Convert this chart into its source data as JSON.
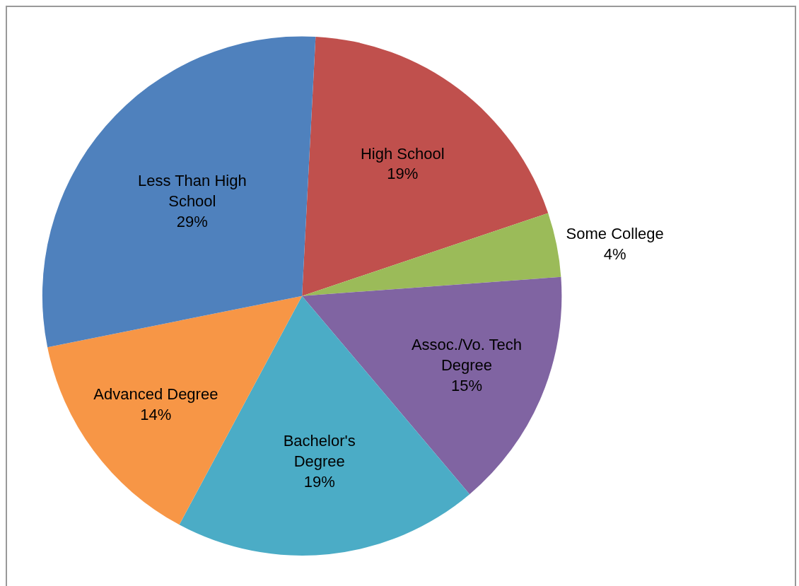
{
  "chart_data": {
    "type": "pie",
    "categories": [
      "High School",
      "Some College",
      "Assoc./Vo. Tech Degree",
      "Bachelor's Degree",
      "Advanced Degree",
      "Less Than High School"
    ],
    "values": [
      19,
      4,
      15,
      19,
      14,
      29
    ],
    "value_labels": [
      "19%",
      "4%",
      "15%",
      "19%",
      "14%",
      "29%"
    ],
    "colors": [
      "#c0504d",
      "#9bbb59",
      "#8064a2",
      "#4bacc6",
      "#f79646",
      "#4f81bd"
    ],
    "legend": false
  }
}
